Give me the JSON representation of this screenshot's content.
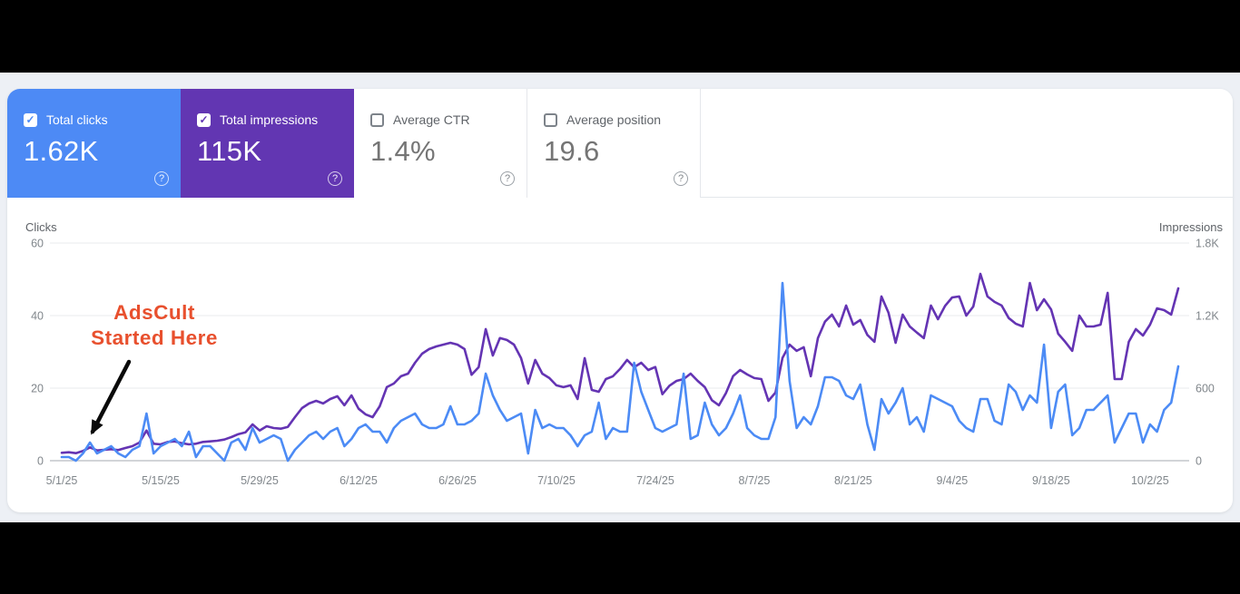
{
  "ui": {
    "check_glyph": "✓",
    "help_glyph": "?"
  },
  "cards": [
    {
      "label": "Total clicks",
      "value": "1.62K",
      "checked": true,
      "color": "#4d8af5"
    },
    {
      "label": "Total impressions",
      "value": "115K",
      "checked": true,
      "color": "#6236b2"
    },
    {
      "label": "Average CTR",
      "value": "1.4%",
      "checked": false,
      "color": "#ffffff"
    },
    {
      "label": "Average position",
      "value": "19.6",
      "checked": false,
      "color": "#ffffff"
    }
  ],
  "chart_data": {
    "type": "line",
    "left_axis": {
      "label": "Clicks",
      "ticks": [
        "0",
        "20",
        "40",
        "60"
      ],
      "tick_values": [
        0,
        20,
        40,
        60
      ],
      "max": 60
    },
    "right_axis": {
      "label": "Impressions",
      "ticks": [
        "0",
        "600",
        "1.2K",
        "1.8K"
      ],
      "tick_values": [
        0,
        600,
        1200,
        1800
      ],
      "max": 1800
    },
    "x_tick_labels": [
      "5/1/25",
      "5/15/25",
      "5/29/25",
      "6/12/25",
      "6/26/25",
      "7/10/25",
      "7/24/25",
      "8/7/25",
      "8/21/25",
      "9/4/25",
      "9/18/25",
      "10/2/25"
    ],
    "x_tick_days": [
      0,
      14,
      28,
      42,
      56,
      70,
      84,
      98,
      112,
      126,
      140,
      154
    ],
    "x_start_date": "5/1/25",
    "days_total": 159,
    "grid": true,
    "legend_position": "none",
    "series": [
      {
        "name": "Total impressions",
        "axis": "right",
        "color": "#6434b3",
        "values": [
          65,
          70,
          62,
          80,
          110,
          85,
          90,
          95,
          88,
          105,
          120,
          150,
          250,
          140,
          135,
          155,
          160,
          145,
          135,
          140,
          155,
          160,
          165,
          175,
          195,
          220,
          235,
          300,
          250,
          285,
          270,
          265,
          280,
          360,
          435,
          473,
          495,
          473,
          510,
          533,
          458,
          540,
          430,
          383,
          360,
          450,
          608,
          638,
          698,
          720,
          810,
          885,
          923,
          945,
          960,
          975,
          960,
          923,
          710,
          773,
          1088,
          870,
          1014,
          998,
          960,
          848,
          638,
          833,
          720,
          683,
          623,
          608,
          623,
          510,
          848,
          585,
          570,
          675,
          698,
          758,
          833,
          773,
          810,
          750,
          775,
          550,
          620,
          660,
          675,
          720,
          660,
          608,
          500,
          458,
          560,
          700,
          750,
          713,
          683,
          675,
          495,
          563,
          850,
          960,
          908,
          938,
          698,
          1013,
          1150,
          1208,
          1110,
          1283,
          1125,
          1163,
          1040,
          983,
          1358,
          1223,
          975,
          1208,
          1110,
          1060,
          1013,
          1283,
          1170,
          1280,
          1350,
          1358,
          1200,
          1275,
          1545,
          1358,
          1313,
          1283,
          1180,
          1133,
          1110,
          1470,
          1245,
          1335,
          1250,
          1050,
          983,
          908,
          1200,
          1110,
          1110,
          1125,
          1388,
          675,
          675,
          983,
          1088,
          1035,
          1125,
          1260,
          1245,
          1208,
          1425
        ]
      },
      {
        "name": "Total clicks",
        "axis": "left",
        "color": "#4c8bf5",
        "values": [
          1,
          1,
          0,
          2,
          5,
          2,
          3,
          4,
          2,
          1,
          3,
          4,
          13,
          2,
          4,
          5,
          6,
          4,
          8,
          1,
          4,
          4,
          2,
          0,
          5,
          6,
          3,
          9,
          5,
          6,
          7,
          6,
          0,
          3,
          5,
          7,
          8,
          6,
          8,
          9,
          4,
          6,
          9,
          10,
          8,
          8,
          5,
          9,
          11,
          12,
          13,
          10,
          9,
          9,
          10,
          15,
          10,
          10,
          11,
          13,
          24,
          18,
          14,
          11,
          12,
          13,
          2,
          14,
          9,
          10,
          9,
          9,
          7,
          4,
          7,
          8,
          16,
          6,
          9,
          8,
          8,
          27,
          19,
          14,
          9,
          8,
          9,
          10,
          24,
          6,
          7,
          16,
          10,
          7,
          9,
          13,
          18,
          9,
          7,
          6,
          6,
          12,
          49,
          22,
          9,
          12,
          10,
          15,
          23,
          23,
          22,
          18,
          17,
          21,
          10,
          3,
          17,
          13,
          16,
          20,
          10,
          12,
          8,
          18,
          17,
          16,
          15,
          11,
          9,
          8,
          17,
          17,
          11,
          10,
          21,
          19,
          14,
          18,
          16,
          32,
          9,
          19,
          21,
          7,
          9,
          14,
          14,
          16,
          18,
          5,
          9,
          13,
          13,
          5,
          10,
          8,
          14,
          16,
          26
        ]
      }
    ],
    "annotation": {
      "lines": [
        "AdsCult",
        "Started Here"
      ],
      "color": "#e8502e",
      "arrow_color": "#0a0a0a"
    }
  }
}
